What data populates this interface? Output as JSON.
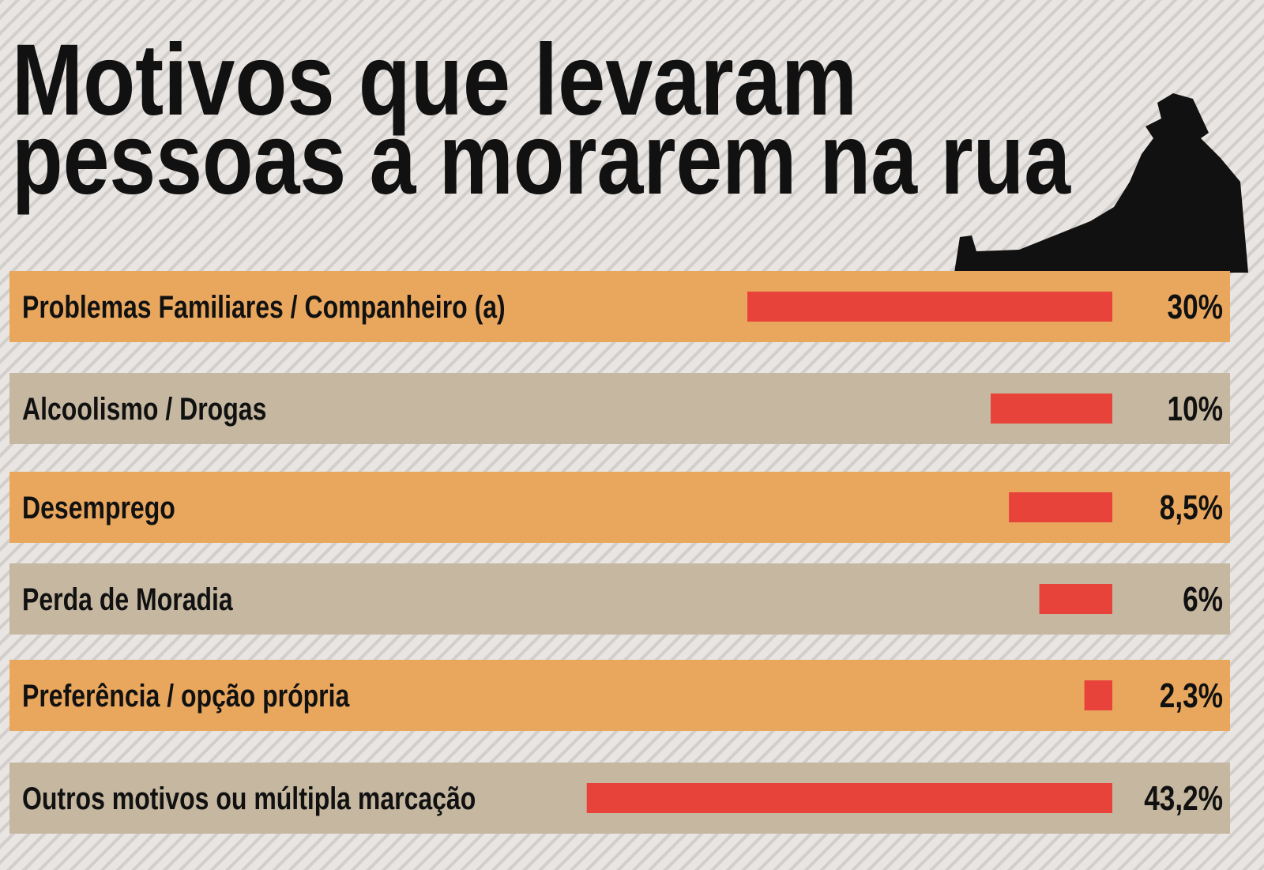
{
  "chart_data": {
    "type": "bar",
    "orientation": "horizontal",
    "title": [
      "Motivos que levaram",
      "pessoas a morarem na rua"
    ],
    "categories": [
      "Problemas Familiares / Companheiro (a)",
      "Alcoolismo / Drogas",
      "Desemprego",
      "Perda de Moradia",
      "Preferência / opção própria",
      "Outros motivos ou múltipla marcação"
    ],
    "values": [
      30,
      10,
      8.5,
      6,
      2.3,
      43.2
    ],
    "value_labels": [
      "30%",
      "10%",
      "8,5%",
      "6%",
      "2,3%",
      "43,2%"
    ],
    "color": "#e8433a",
    "row_colors": [
      "#e9a75e",
      "#c5b7a0"
    ]
  }
}
